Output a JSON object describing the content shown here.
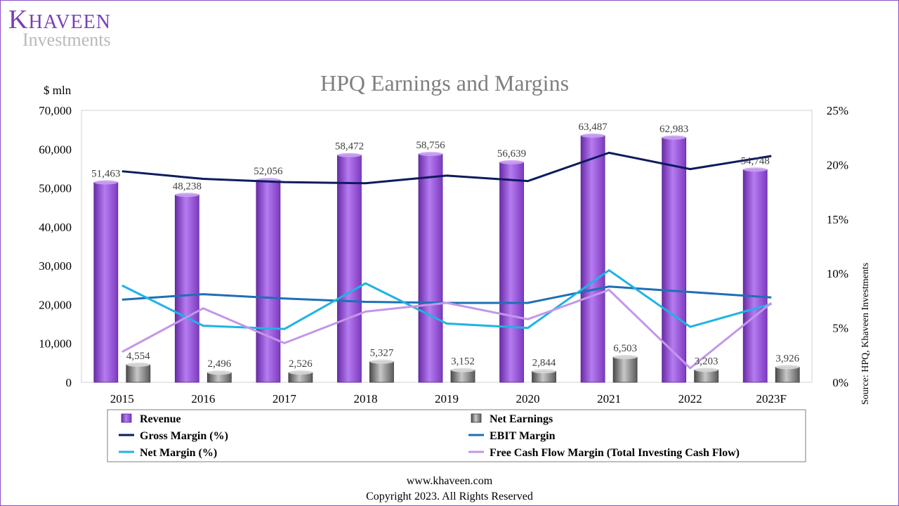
{
  "brand": {
    "name_first": "K",
    "name_rest": "HAVEEN",
    "sub": "Investments"
  },
  "footer": {
    "website": "www.khaveen.com",
    "copyright": "Copyright 2023. All Rights Reserved"
  },
  "colors": {
    "revenue": "#9b59d9",
    "net_earnings": "#8c8c8c",
    "gross_margin": "#0d1b5e",
    "ebit_margin": "#1f6fb5",
    "net_margin": "#1fb3e5",
    "fcf_margin": "#c496ea",
    "border": "#8a4fc4"
  },
  "chart_data": {
    "type": "bar",
    "title": "HPQ Earnings and Margins",
    "ylabel": "$ mln",
    "y2label": "Source: HPQ, Khaveen Investments",
    "categories": [
      "2015",
      "2016",
      "2017",
      "2018",
      "2019",
      "2020",
      "2021",
      "2022",
      "2023F"
    ],
    "ylim": [
      0,
      70000
    ],
    "y_ticks": [
      "0",
      "10,000",
      "20,000",
      "30,000",
      "40,000",
      "50,000",
      "60,000",
      "70,000"
    ],
    "y2lim": [
      0,
      25
    ],
    "y2_ticks": [
      "0%",
      "5%",
      "10%",
      "15%",
      "20%",
      "25%"
    ],
    "grid": false,
    "legend_position": "bottom",
    "bar_series": [
      {
        "name": "Revenue",
        "values": [
          51463,
          48238,
          52056,
          58472,
          58756,
          56639,
          63487,
          62983,
          54748
        ],
        "labels": [
          "51,463",
          "48,238",
          "52,056",
          "58,472",
          "58,756",
          "56,639",
          "63,487",
          "62,983",
          "54,748"
        ]
      },
      {
        "name": "Net Earnings",
        "values": [
          4554,
          2496,
          2526,
          5327,
          3152,
          2844,
          6503,
          3203,
          3926
        ],
        "labels": [
          "4,554",
          "2,496",
          "2,526",
          "5,327",
          "3,152",
          "2,844",
          "6,503",
          "3,203",
          "3,926"
        ]
      }
    ],
    "line_series": [
      {
        "name": "Gross Margin (%)",
        "values": [
          19.4,
          18.7,
          18.4,
          18.3,
          19.0,
          18.5,
          21.1,
          19.6,
          20.8
        ]
      },
      {
        "name": "EBIT Margin",
        "values": [
          7.6,
          8.1,
          7.7,
          7.4,
          7.3,
          7.3,
          8.8,
          8.3,
          7.8
        ]
      },
      {
        "name": "Net Margin (%)",
        "values": [
          8.9,
          5.2,
          4.9,
          9.1,
          5.4,
          5.0,
          10.3,
          5.1,
          7.2
        ]
      },
      {
        "name": "Free Cash Flow Margin (Total Investing Cash Flow)",
        "values": [
          2.8,
          6.8,
          3.6,
          6.5,
          7.3,
          5.8,
          8.5,
          1.3,
          7.3
        ]
      }
    ],
    "legend": [
      "Revenue",
      "Net Earnings",
      "Gross Margin (%)",
      "EBIT Margin",
      "Net Margin (%)",
      "Free Cash Flow Margin (Total Investing Cash Flow)"
    ]
  }
}
